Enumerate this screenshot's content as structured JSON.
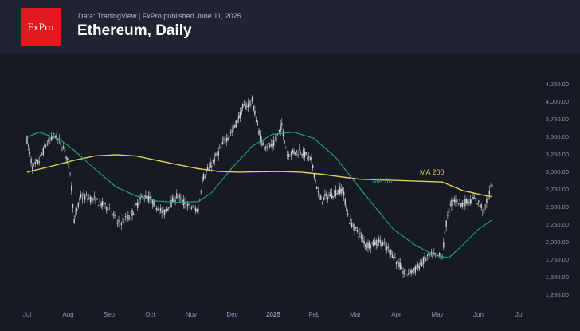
{
  "header": {
    "logo_text": "FxPro",
    "source": "Data: TradingView | FxPro published June 11, 2025",
    "title": "Ethereum, Daily"
  },
  "colors": {
    "background": "#151a25",
    "header_bg": "#1f2430",
    "logo_red": "#e11a1f",
    "candle": "#cfd5df",
    "ma200": "#e3cf55",
    "ma50": "#2ea66b",
    "axis_text": "#8d94a1"
  },
  "chart_data": {
    "type": "candlestick",
    "title": "Ethereum, Daily",
    "y_ticks": [
      "4,250.00",
      "4,000.00",
      "3,750.00",
      "3,500.00",
      "3,250.00",
      "3,000.00",
      "2,750.00",
      "2,500.00",
      "2,250.00",
      "2,000.00",
      "1,750.00",
      "1,500.00",
      "1,250.00"
    ],
    "x_ticks": [
      "Jul",
      "Aug",
      "Sep",
      "Oct",
      "Nov",
      "Dec",
      "2025",
      "Feb",
      "Mar",
      "Apr",
      "May",
      "Jun",
      "Jul"
    ],
    "ylim": [
      1150,
      4350
    ],
    "grid": false,
    "series": [
      {
        "name": "MA 200",
        "color": "#e3cf55",
        "points": [
          [
            "2024-07-01",
            2990
          ],
          [
            "2024-07-20",
            3080
          ],
          [
            "2024-08-05",
            3160
          ],
          [
            "2024-08-20",
            3220
          ],
          [
            "2024-09-05",
            3240
          ],
          [
            "2024-09-20",
            3220
          ],
          [
            "2024-10-05",
            3160
          ],
          [
            "2024-10-20",
            3100
          ],
          [
            "2024-11-05",
            3040
          ],
          [
            "2024-11-20",
            3000
          ],
          [
            "2024-12-05",
            2990
          ],
          [
            "2024-12-20",
            2995
          ],
          [
            "2025-01-05",
            3000
          ],
          [
            "2025-01-20",
            2990
          ],
          [
            "2025-02-05",
            2960
          ],
          [
            "2025-02-20",
            2920
          ],
          [
            "2025-03-05",
            2890
          ],
          [
            "2025-03-20",
            2880
          ],
          [
            "2025-04-05",
            2870
          ],
          [
            "2025-04-20",
            2860
          ],
          [
            "2025-05-05",
            2850
          ],
          [
            "2025-05-20",
            2730
          ],
          [
            "2025-06-05",
            2660
          ],
          [
            "2025-06-11",
            2640
          ]
        ]
      },
      {
        "name": "MA 50",
        "color": "#2ea66b",
        "points": [
          [
            "2024-07-01",
            3490
          ],
          [
            "2024-07-10",
            3560
          ],
          [
            "2024-07-25",
            3460
          ],
          [
            "2024-08-05",
            3300
          ],
          [
            "2024-08-20",
            3040
          ],
          [
            "2024-09-05",
            2780
          ],
          [
            "2024-09-20",
            2650
          ],
          [
            "2024-10-05",
            2580
          ],
          [
            "2024-10-20",
            2560
          ],
          [
            "2024-11-05",
            2570
          ],
          [
            "2024-11-15",
            2700
          ],
          [
            "2024-11-30",
            3050
          ],
          [
            "2024-12-15",
            3360
          ],
          [
            "2024-12-30",
            3530
          ],
          [
            "2025-01-15",
            3560
          ],
          [
            "2025-01-30",
            3470
          ],
          [
            "2025-02-15",
            3200
          ],
          [
            "2025-02-28",
            2880
          ],
          [
            "2025-03-15",
            2520
          ],
          [
            "2025-03-30",
            2170
          ],
          [
            "2025-04-15",
            1950
          ],
          [
            "2025-04-30",
            1800
          ],
          [
            "2025-05-10",
            1770
          ],
          [
            "2025-05-20",
            1950
          ],
          [
            "2025-06-01",
            2180
          ],
          [
            "2025-06-11",
            2310
          ]
        ]
      }
    ],
    "price_path": [
      [
        "2024-07-01",
        3450
      ],
      [
        "2024-07-05",
        3050
      ],
      [
        "2024-07-10",
        3150
      ],
      [
        "2024-07-15",
        3380
      ],
      [
        "2024-07-22",
        3520
      ],
      [
        "2024-07-29",
        3300
      ],
      [
        "2024-08-02",
        3000
      ],
      [
        "2024-08-05",
        2300
      ],
      [
        "2024-08-10",
        2650
      ],
      [
        "2024-08-20",
        2600
      ],
      [
        "2024-09-01",
        2450
      ],
      [
        "2024-09-06",
        2250
      ],
      [
        "2024-09-15",
        2350
      ],
      [
        "2024-09-25",
        2650
      ],
      [
        "2024-10-01",
        2600
      ],
      [
        "2024-10-10",
        2400
      ],
      [
        "2024-10-20",
        2650
      ],
      [
        "2024-10-28",
        2500
      ],
      [
        "2024-11-05",
        2450
      ],
      [
        "2024-11-08",
        2900
      ],
      [
        "2024-11-15",
        3100
      ],
      [
        "2024-11-25",
        3450
      ],
      [
        "2024-12-01",
        3600
      ],
      [
        "2024-12-08",
        3900
      ],
      [
        "2024-12-15",
        4000
      ],
      [
        "2024-12-22",
        3400
      ],
      [
        "2024-12-30",
        3350
      ],
      [
        "2025-01-06",
        3650
      ],
      [
        "2025-01-10",
        3250
      ],
      [
        "2025-01-20",
        3300
      ],
      [
        "2025-01-28",
        3150
      ],
      [
        "2025-02-03",
        2600
      ],
      [
        "2025-02-10",
        2650
      ],
      [
        "2025-02-20",
        2750
      ],
      [
        "2025-02-25",
        2300
      ],
      [
        "2025-03-01",
        2200
      ],
      [
        "2025-03-10",
        1950
      ],
      [
        "2025-03-20",
        2000
      ],
      [
        "2025-03-28",
        1850
      ],
      [
        "2025-04-07",
        1550
      ],
      [
        "2025-04-15",
        1600
      ],
      [
        "2025-04-25",
        1800
      ],
      [
        "2025-05-05",
        1800
      ],
      [
        "2025-05-09",
        2400
      ],
      [
        "2025-05-13",
        2600
      ],
      [
        "2025-05-20",
        2550
      ],
      [
        "2025-05-30",
        2600
      ],
      [
        "2025-06-05",
        2450
      ],
      [
        "2025-06-11",
        2820
      ]
    ],
    "reference_price": 2780,
    "annotations": [
      "MA 200",
      "MA 50"
    ]
  }
}
